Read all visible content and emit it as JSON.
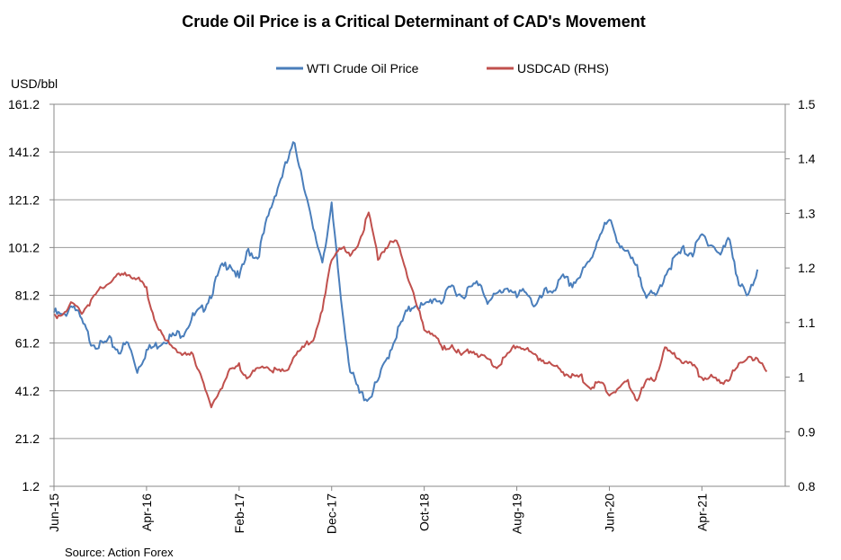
{
  "chart_data": {
    "type": "line",
    "title": "Crude Oil Price is a Critical Determinant of CAD's Movement",
    "ylabel_left": "USD/bbl",
    "source": "Source: Action Forex",
    "left_axis": {
      "min": 1.2,
      "max": 161.2,
      "ticks": [
        "1.2",
        "21.2",
        "41.2",
        "61.2",
        "81.2",
        "101.2",
        "121.2",
        "141.2",
        "161.2"
      ]
    },
    "right_axis": {
      "min": 0.8,
      "max": 1.5,
      "ticks": [
        "0.8",
        "0.9",
        "1",
        "1.1",
        "1.2",
        "1.3",
        "1.4",
        "1.5"
      ]
    },
    "x_axis": {
      "start": "2015-06",
      "end": "2022-01",
      "ticks": [
        {
          "label": "Jun-15",
          "month": 0
        },
        {
          "label": "Apr-16",
          "month": 10
        },
        {
          "label": "Feb-17",
          "month": 20
        },
        {
          "label": "Dec-17",
          "month": 30
        },
        {
          "label": "Oct-18",
          "month": 40
        },
        {
          "label": "Aug-19",
          "month": 50
        },
        {
          "label": "Jun-20",
          "month": 60
        },
        {
          "label": "Apr-21",
          "month": 70
        }
      ],
      "total_months": 79
    },
    "legend": {
      "placement": "top-center"
    },
    "series": [
      {
        "name": "WTI Crude Oil Price",
        "axis": "left",
        "color": "#4a7ebb",
        "points": [
          [
            0,
            74
          ],
          [
            1,
            72
          ],
          [
            2,
            78
          ],
          [
            3,
            70
          ],
          [
            4,
            62
          ],
          [
            5,
            60
          ],
          [
            6,
            62
          ],
          [
            7,
            58
          ],
          [
            8,
            61
          ],
          [
            9,
            50
          ],
          [
            10,
            58
          ],
          [
            11,
            60
          ],
          [
            12,
            63
          ],
          [
            13,
            64
          ],
          [
            14,
            66
          ],
          [
            15,
            72
          ],
          [
            16,
            75
          ],
          [
            17,
            82
          ],
          [
            18,
            92
          ],
          [
            19,
            95
          ],
          [
            20,
            88
          ],
          [
            21,
            100
          ],
          [
            22,
            97
          ],
          [
            23,
            112
          ],
          [
            24,
            125
          ],
          [
            25,
            135
          ],
          [
            26,
            145
          ],
          [
            27,
            128
          ],
          [
            28,
            108
          ],
          [
            29,
            96
          ],
          [
            30,
            118
          ],
          [
            31,
            80
          ],
          [
            32,
            50
          ],
          [
            33,
            40
          ],
          [
            34,
            38
          ],
          [
            35,
            45
          ],
          [
            36,
            55
          ],
          [
            37,
            65
          ],
          [
            38,
            73
          ],
          [
            39,
            78
          ],
          [
            40,
            76
          ],
          [
            41,
            80
          ],
          [
            42,
            79
          ],
          [
            43,
            85
          ],
          [
            44,
            81
          ],
          [
            45,
            84
          ],
          [
            46,
            87
          ],
          [
            47,
            78
          ],
          [
            48,
            82
          ],
          [
            49,
            85
          ],
          [
            50,
            80
          ],
          [
            51,
            84
          ],
          [
            52,
            76
          ],
          [
            53,
            82
          ],
          [
            54,
            84
          ],
          [
            55,
            88
          ],
          [
            56,
            86
          ],
          [
            57,
            90
          ],
          [
            58,
            96
          ],
          [
            59,
            108
          ],
          [
            60,
            112
          ],
          [
            61,
            104
          ],
          [
            62,
            98
          ],
          [
            63,
            92
          ],
          [
            64,
            82
          ],
          [
            65,
            80
          ],
          [
            66,
            90
          ],
          [
            67,
            96
          ],
          [
            68,
            100
          ],
          [
            69,
            99
          ],
          [
            70,
            106
          ],
          [
            71,
            103
          ],
          [
            72,
            98
          ],
          [
            73,
            105
          ],
          [
            74,
            86
          ],
          [
            75,
            80
          ],
          [
            76,
            92
          ]
        ]
      },
      {
        "name": "USDCAD (RHS)",
        "axis": "right",
        "color": "#c0504d",
        "points": [
          [
            0,
            1.11
          ],
          [
            1,
            1.12
          ],
          [
            2,
            1.135
          ],
          [
            3,
            1.12
          ],
          [
            4,
            1.14
          ],
          [
            5,
            1.16
          ],
          [
            6,
            1.175
          ],
          [
            7,
            1.185
          ],
          [
            8,
            1.19
          ],
          [
            9,
            1.18
          ],
          [
            10,
            1.16
          ],
          [
            11,
            1.1
          ],
          [
            12,
            1.065
          ],
          [
            13,
            1.055
          ],
          [
            14,
            1.04
          ],
          [
            15,
            1.04
          ],
          [
            16,
            1.0
          ],
          [
            17,
            0.94
          ],
          [
            18,
            0.98
          ],
          [
            19,
            1.01
          ],
          [
            20,
            1.02
          ],
          [
            21,
            1.0
          ],
          [
            22,
            1.015
          ],
          [
            23,
            1.02
          ],
          [
            24,
            1.01
          ],
          [
            25,
            1.01
          ],
          [
            26,
            1.04
          ],
          [
            27,
            1.055
          ],
          [
            28,
            1.07
          ],
          [
            29,
            1.12
          ],
          [
            30,
            1.22
          ],
          [
            31,
            1.24
          ],
          [
            32,
            1.22
          ],
          [
            33,
            1.25
          ],
          [
            34,
            1.3
          ],
          [
            35,
            1.22
          ],
          [
            36,
            1.24
          ],
          [
            37,
            1.25
          ],
          [
            38,
            1.2
          ],
          [
            39,
            1.14
          ],
          [
            40,
            1.09
          ],
          [
            41,
            1.08
          ],
          [
            42,
            1.05
          ],
          [
            43,
            1.06
          ],
          [
            44,
            1.04
          ],
          [
            45,
            1.05
          ],
          [
            46,
            1.04
          ],
          [
            47,
            1.03
          ],
          [
            48,
            1.02
          ],
          [
            49,
            1.04
          ],
          [
            50,
            1.06
          ],
          [
            51,
            1.05
          ],
          [
            52,
            1.04
          ],
          [
            53,
            1.03
          ],
          [
            54,
            1.02
          ],
          [
            55,
            1.01
          ],
          [
            56,
            1.0
          ],
          [
            57,
            1.0
          ],
          [
            58,
            0.98
          ],
          [
            59,
            0.99
          ],
          [
            60,
            0.97
          ],
          [
            61,
            0.98
          ],
          [
            62,
            0.99
          ],
          [
            63,
            0.96
          ],
          [
            64,
            0.99
          ],
          [
            65,
            1.0
          ],
          [
            66,
            1.05
          ],
          [
            67,
            1.04
          ],
          [
            68,
            1.03
          ],
          [
            69,
            1.02
          ],
          [
            70,
            1.0
          ],
          [
            71,
            1.0
          ],
          [
            72,
            0.99
          ],
          [
            73,
            1.0
          ],
          [
            74,
            1.02
          ],
          [
            75,
            1.04
          ],
          [
            76,
            1.03
          ],
          [
            77,
            1.01
          ]
        ]
      }
    ]
  }
}
